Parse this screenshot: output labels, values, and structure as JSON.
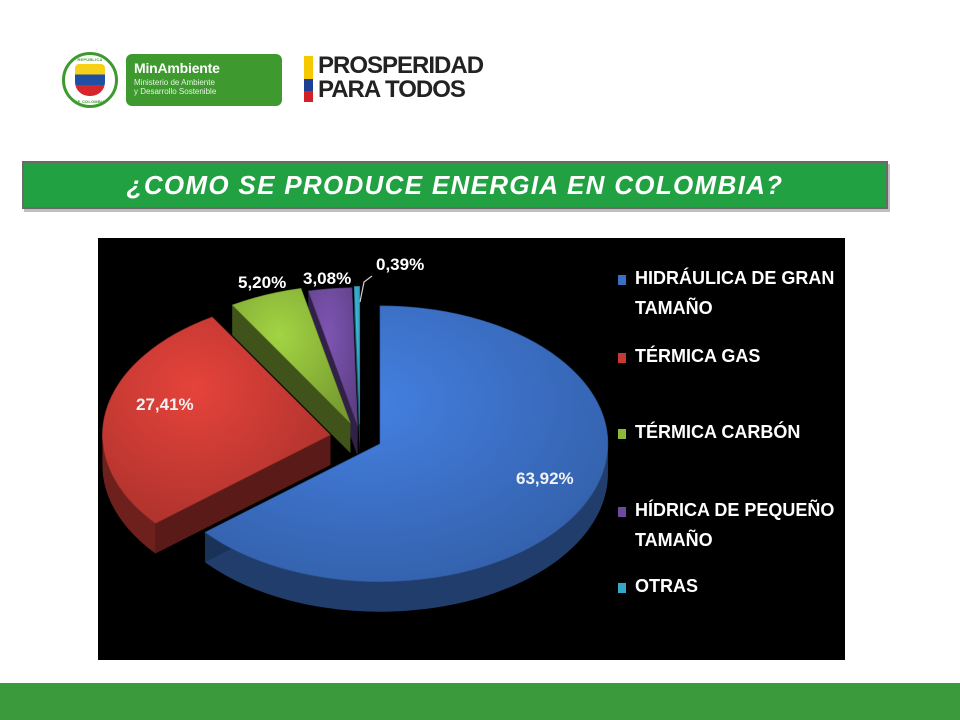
{
  "header": {
    "seal_text_top": "REPÚBLICA",
    "seal_text_bottom": "DE COLOMBIA",
    "ministry_name": "MinAmbiente",
    "ministry_subtitle_1": "Ministerio de Ambiente",
    "ministry_subtitle_2": "y Desarrollo Sostenible",
    "slogan_line_1": "PROSPERIDAD",
    "slogan_line_2": "PARA TODOS"
  },
  "title": "¿COMO SE PRODUCE ENERGIA EN COLOMBIA?",
  "chart_data": {
    "type": "pie",
    "title": "",
    "categories": [
      "HIDRÁULICA DE GRAN TAMAÑO",
      "TÉRMICA GAS",
      "TÉRMICA CARBÓN",
      "HÍDRICA DE PEQUEÑO TAMAÑO",
      "OTRAS"
    ],
    "legend_lines": [
      [
        "HIDRÁULICA DE GRAN",
        "TAMAÑO"
      ],
      [
        "TÉRMICA GAS"
      ],
      [
        "TÉRMICA CARBÓN"
      ],
      [
        "HÍDRICA DE PEQUEÑO",
        "TAMAÑO"
      ],
      [
        "OTRAS"
      ]
    ],
    "values": [
      63.92,
      27.41,
      5.2,
      3.08,
      0.39
    ],
    "labels": [
      "63,92%",
      "27,41%",
      "5,20%",
      "3,08%",
      "0,39%"
    ],
    "colors": [
      "#3b6fc4",
      "#c73a33",
      "#8db83a",
      "#6e4a9c",
      "#35a8c8"
    ],
    "background": "#000000",
    "style": "3d-exploded",
    "legend_position": "right"
  }
}
